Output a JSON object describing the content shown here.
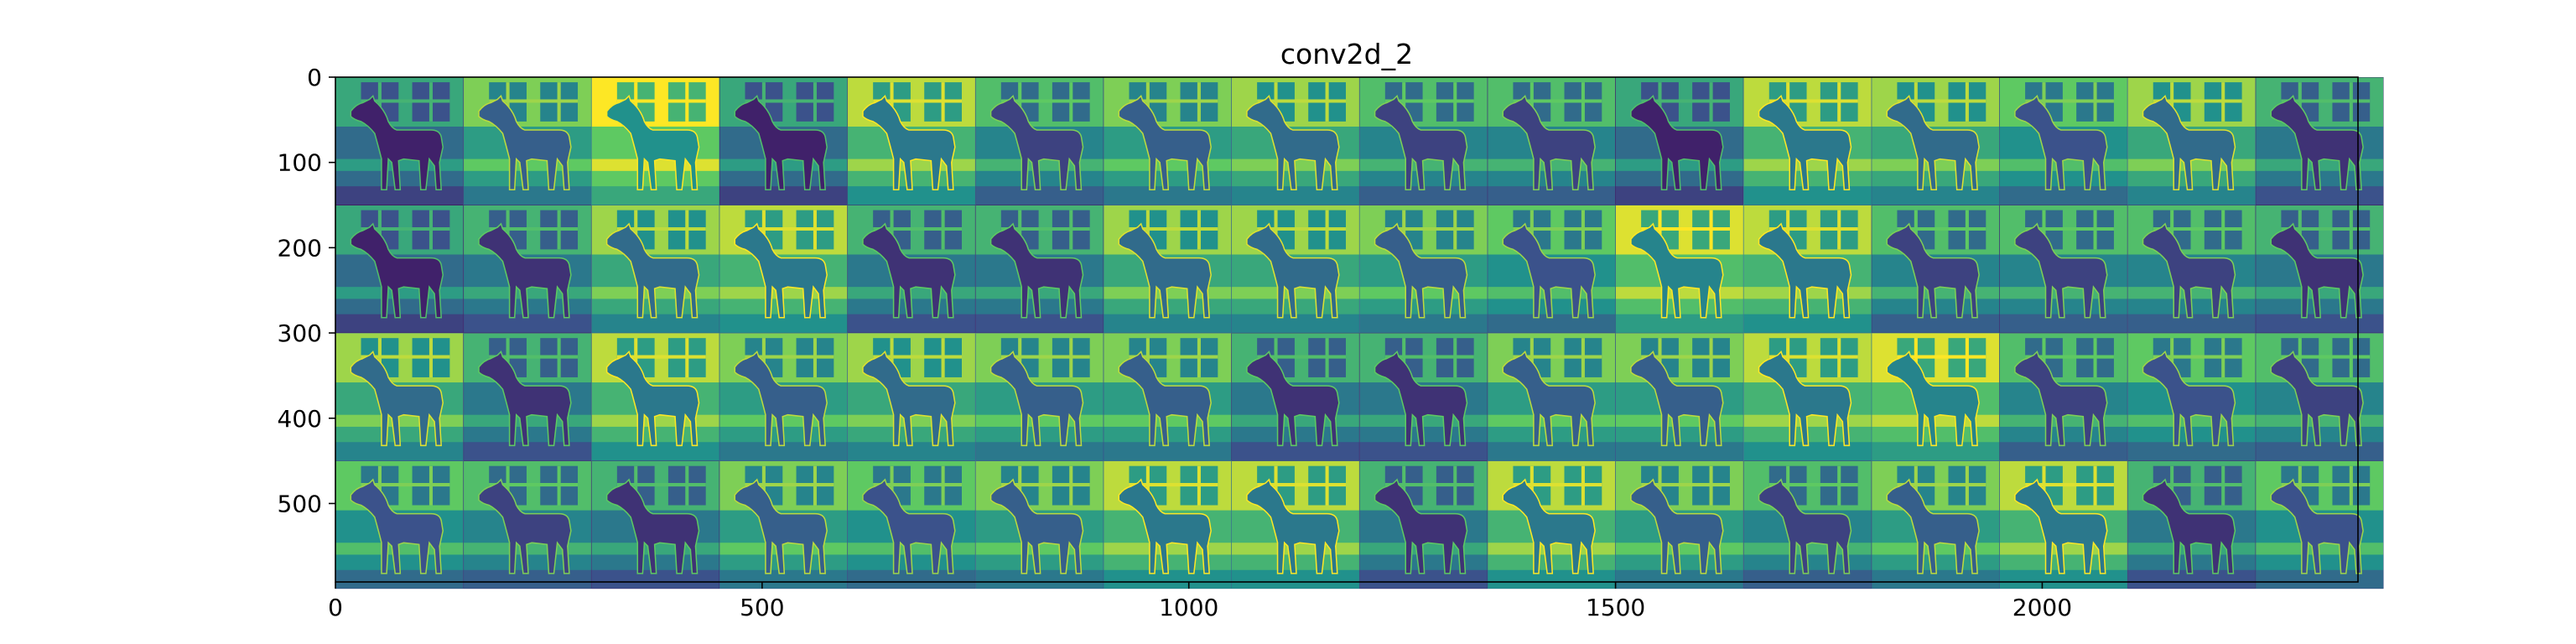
{
  "figure": {
    "title": "conv2d_2"
  },
  "image_grid": {
    "rows": 4,
    "cols": 16,
    "subject": "horse standing in front of a stable wall (feature-map activations)",
    "colormap": [
      "#440154",
      "#3b528b",
      "#21918c",
      "#5ec962",
      "#fde725"
    ],
    "tile_levels": [
      [
        0.35,
        0.55,
        0.75,
        0.35,
        0.65,
        0.45,
        0.55,
        0.6,
        0.45,
        0.45,
        0.35,
        0.65,
        0.6,
        0.5,
        0.6,
        0.4
      ],
      [
        0.35,
        0.4,
        0.6,
        0.65,
        0.4,
        0.4,
        0.6,
        0.6,
        0.55,
        0.5,
        0.7,
        0.65,
        0.45,
        0.45,
        0.45,
        0.4
      ],
      [
        0.6,
        0.4,
        0.65,
        0.55,
        0.6,
        0.55,
        0.55,
        0.4,
        0.4,
        0.55,
        0.55,
        0.65,
        0.7,
        0.45,
        0.5,
        0.45
      ],
      [
        0.5,
        0.45,
        0.4,
        0.55,
        0.5,
        0.55,
        0.65,
        0.65,
        0.4,
        0.65,
        0.55,
        0.45,
        0.55,
        0.65,
        0.4,
        0.5
      ]
    ],
    "x_range": [
      0,
      2370
    ],
    "y_range": [
      0,
      592
    ]
  },
  "axes": {
    "xticks": [
      "0",
      "500",
      "1000",
      "1500",
      "2000"
    ],
    "xtick_values": [
      0,
      500,
      1000,
      1500,
      2000
    ],
    "yticks": [
      "0",
      "100",
      "200",
      "300",
      "400",
      "500"
    ],
    "ytick_values": [
      0,
      100,
      200,
      300,
      400,
      500
    ]
  }
}
